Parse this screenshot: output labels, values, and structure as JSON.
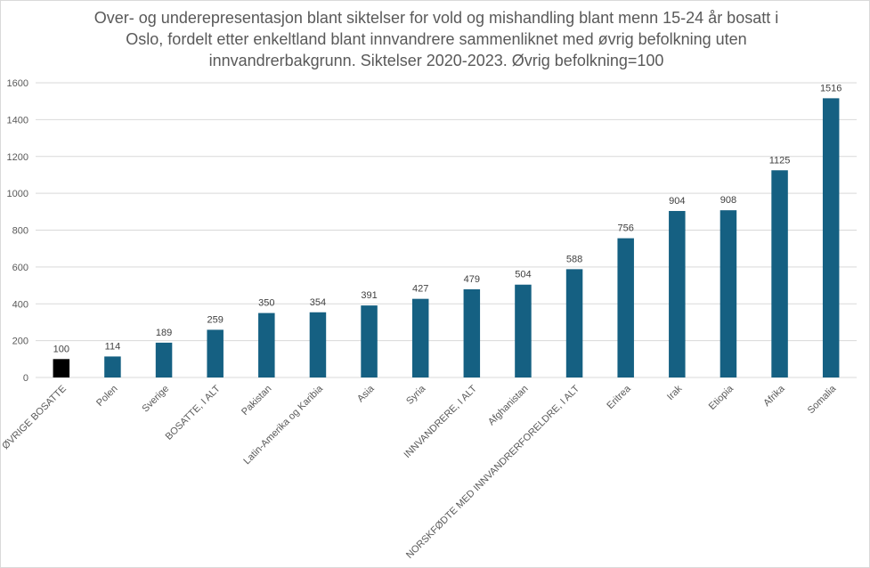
{
  "chart_data": {
    "type": "bar",
    "title_lines": [
      "Over- og underepresentasjon blant siktelser for vold og mishandling blant menn 15-24 år bosatt i",
      "Oslo, fordelt etter enkeltland blant innvandrere sammenliknet med øvrig befolkning uten",
      "innvandrerbakgrunn. Siktelser 2020-2023. Øvrig befolkning=100"
    ],
    "categories": [
      "ØVRIGE BOSATTE",
      "Polen",
      "Sverige",
      "BOSATTE, I ALT",
      "Pakistan",
      "Latin-Amerika og Karibia",
      "Asia",
      "Syria",
      "INNVANDRERE, I ALT",
      "Afghanistan",
      "NORSKFØDTE MED INNVANDRERFORELDRE, I ALT",
      "Eritrea",
      "Irak",
      "Etiopia",
      "Afrika",
      "Somalia"
    ],
    "values": [
      100,
      114,
      189,
      259,
      350,
      354,
      391,
      427,
      479,
      504,
      588,
      756,
      904,
      908,
      1125,
      1516
    ],
    "bar_colors": [
      "#000000",
      "#156082",
      "#156082",
      "#156082",
      "#156082",
      "#156082",
      "#156082",
      "#156082",
      "#156082",
      "#156082",
      "#156082",
      "#156082",
      "#156082",
      "#156082",
      "#156082",
      "#156082"
    ],
    "y_ticks": [
      0,
      200,
      400,
      600,
      800,
      1000,
      1200,
      1400,
      1600
    ],
    "ylim": [
      0,
      1600
    ],
    "xlabel": "",
    "ylabel": "",
    "grid": true
  }
}
